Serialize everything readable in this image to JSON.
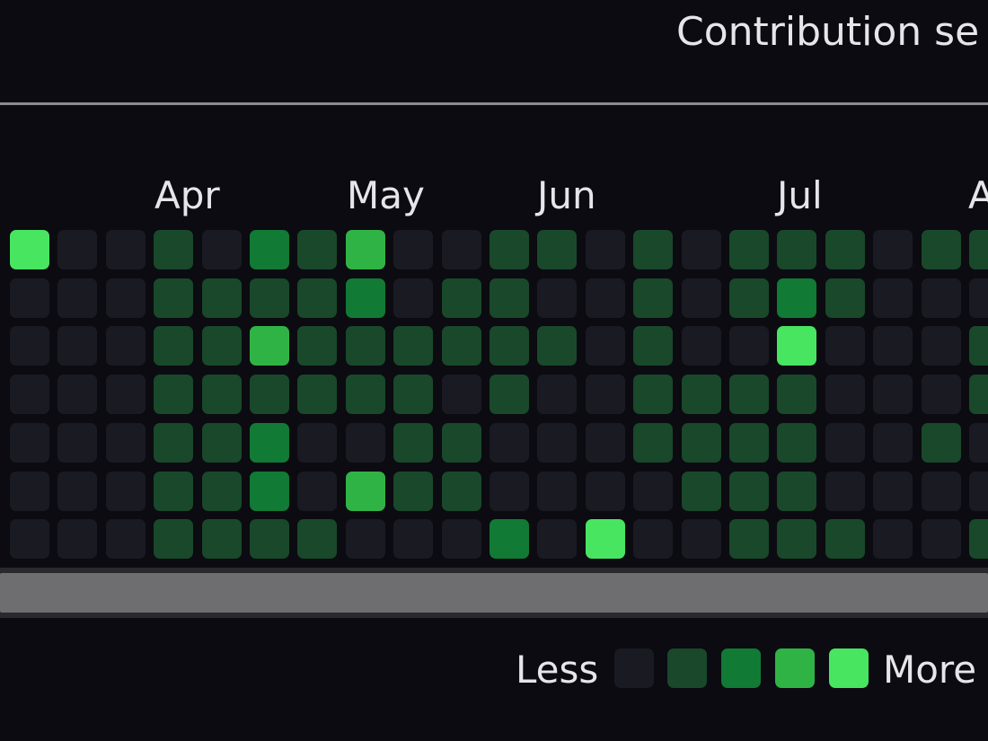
{
  "header": {
    "settings_label": "Contribution se"
  },
  "months": [
    "Apr",
    "May",
    "Jun",
    "Jul",
    "A"
  ],
  "levels_palette": [
    "#1a1b22",
    "#19482b",
    "#117a35",
    "#30b345",
    "#48e560"
  ],
  "contribution_grid": {
    "rows": 7,
    "columns": 21,
    "levels": [
      [
        4,
        0,
        0,
        1,
        0,
        2,
        1,
        3,
        0,
        0,
        1,
        1,
        0,
        1,
        0,
        1,
        1,
        1,
        0,
        1,
        1
      ],
      [
        0,
        0,
        0,
        1,
        1,
        1,
        1,
        2,
        0,
        1,
        1,
        0,
        0,
        1,
        0,
        1,
        2,
        1,
        0,
        0,
        0
      ],
      [
        0,
        0,
        0,
        1,
        1,
        3,
        1,
        1,
        1,
        1,
        1,
        1,
        0,
        1,
        0,
        0,
        4,
        0,
        0,
        0,
        1
      ],
      [
        0,
        0,
        0,
        1,
        1,
        1,
        1,
        1,
        1,
        0,
        1,
        0,
        0,
        1,
        1,
        1,
        1,
        0,
        0,
        0,
        1
      ],
      [
        0,
        0,
        0,
        1,
        1,
        2,
        0,
        0,
        1,
        1,
        0,
        0,
        0,
        1,
        1,
        1,
        1,
        0,
        0,
        1,
        0
      ],
      [
        0,
        0,
        0,
        1,
        1,
        2,
        0,
        3,
        1,
        1,
        0,
        0,
        0,
        0,
        1,
        1,
        1,
        0,
        0,
        0,
        0
      ],
      [
        0,
        0,
        0,
        1,
        1,
        1,
        1,
        0,
        0,
        0,
        2,
        0,
        4,
        0,
        0,
        1,
        1,
        1,
        0,
        0,
        1
      ]
    ]
  },
  "legend": {
    "less_label": "Less",
    "more_label": "More"
  }
}
